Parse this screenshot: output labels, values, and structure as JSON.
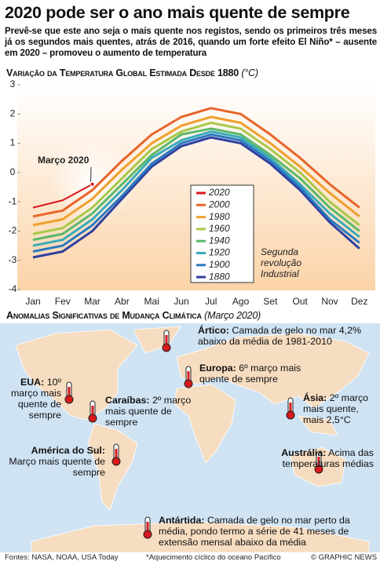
{
  "chart_data": {
    "type": "line",
    "title": "2020 pode ser o ano mais quente de sempre",
    "subtitle": "Prevê-se que este ano seja o mais quente nos registos, sendo os primeiros três meses já os segundos mais quentes, atrás de 2016, quando um forte efeito El Niño* – ausente em 2020 – promoveu o aumento de temperatura",
    "chart_title": "Variação da Temperatura Global Estimada Desde 1880",
    "y_label": "(°C)",
    "annotation": "Março 2020",
    "annotation_industrial": [
      "Segunda",
      "revolução",
      "Industrial"
    ],
    "categories": [
      "Jan",
      "Fev",
      "Mar",
      "Abr",
      "Mai",
      "Jun",
      "Jul",
      "Ago",
      "Set",
      "Out",
      "Nov",
      "Dez"
    ],
    "ylim": [
      -4,
      3
    ],
    "yticks": [
      -4,
      -3,
      -2,
      -1,
      0,
      1,
      2,
      3
    ],
    "series": [
      {
        "name": "2020",
        "color": "#d7191c",
        "values": [
          -1.2,
          -0.95,
          -0.4,
          null,
          null,
          null,
          null,
          null,
          null,
          null,
          null,
          null
        ]
      },
      {
        "name": "2000",
        "color": "#e8642a",
        "values": [
          -1.5,
          -1.3,
          -0.6,
          0.4,
          1.3,
          1.9,
          2.2,
          2.0,
          1.3,
          0.5,
          -0.4,
          -1.2
        ]
      },
      {
        "name": "1980",
        "color": "#f0a030",
        "values": [
          -1.8,
          -1.6,
          -0.9,
          0.1,
          1.0,
          1.6,
          1.9,
          1.7,
          1.0,
          0.2,
          -0.7,
          -1.5
        ]
      },
      {
        "name": "1960",
        "color": "#a8c84a",
        "values": [
          -2.1,
          -1.9,
          -1.2,
          -0.2,
          0.8,
          1.4,
          1.7,
          1.5,
          0.8,
          0.0,
          -1.0,
          -1.8
        ]
      },
      {
        "name": "1940",
        "color": "#5cb86a",
        "values": [
          -2.3,
          -2.1,
          -1.4,
          -0.4,
          0.6,
          1.3,
          1.5,
          1.3,
          0.6,
          -0.2,
          -1.2,
          -2.0
        ]
      },
      {
        "name": "1920",
        "color": "#3aaab8",
        "values": [
          -2.5,
          -2.3,
          -1.6,
          -0.6,
          0.5,
          1.1,
          1.4,
          1.2,
          0.5,
          -0.4,
          -1.4,
          -2.2
        ]
      },
      {
        "name": "1900",
        "color": "#2a7ac0",
        "values": [
          -2.7,
          -2.5,
          -1.8,
          -0.8,
          0.3,
          1.0,
          1.3,
          1.1,
          0.4,
          -0.5,
          -1.6,
          -2.4
        ]
      },
      {
        "name": "1880",
        "color": "#3040a0",
        "values": [
          -2.9,
          -2.7,
          -2.0,
          -0.9,
          0.2,
          0.9,
          1.2,
          1.0,
          0.3,
          -0.6,
          -1.7,
          -2.6
        ]
      }
    ]
  },
  "map": {
    "title": "Anomalias Significativas de Mudança Climática",
    "subtitle": "(Março 2020)",
    "regions": [
      {
        "name": "Ártico:",
        "text": "Camada de gelo no mar 4,2% abaixo da média de 1981-2010"
      },
      {
        "name": "EUA:",
        "text": "10º março mais quente de sempre"
      },
      {
        "name": "Caraíbas:",
        "text": "2º março mais quente de sempre"
      },
      {
        "name": "Europa:",
        "text": "6º março mais quente de sempre"
      },
      {
        "name": "Ásia:",
        "text": "2º março mais quente, mais 2,5°C"
      },
      {
        "name": "América do Sul:",
        "text": "Março mais quente de sempre"
      },
      {
        "name": "Austrália:",
        "text": "Acima das temperaturas médias"
      },
      {
        "name": "Antártida:",
        "text": "Camada de gelo no mar perto da média, pondo termo a série de 41 meses de extensão mensal abaixo da média"
      }
    ]
  },
  "footer": {
    "sources": "Fontes: NASA, NOAA, USA Today",
    "footnote": "*Aquecimento cíclico do oceano Pacífico",
    "credit": "© GRAPHIC NEWS"
  }
}
